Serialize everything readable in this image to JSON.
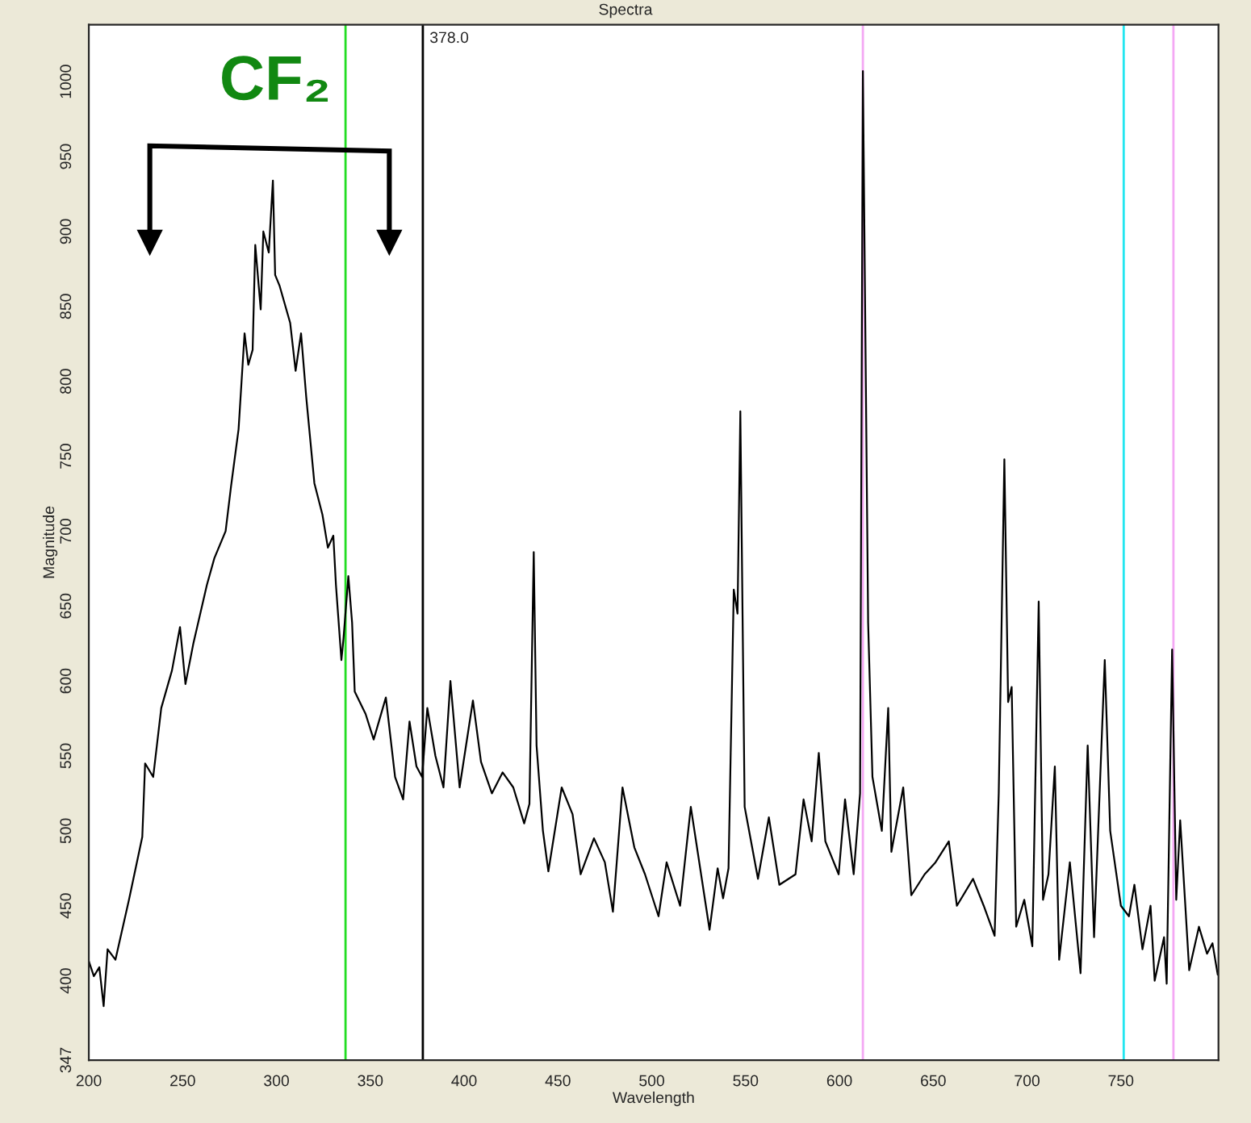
{
  "chart_data": {
    "type": "line",
    "title": "Spectra",
    "xlabel": "Wavelength",
    "ylabel": "Magnitude",
    "xlim": [
      200,
      802
    ],
    "xticks": [
      200,
      250,
      300,
      350,
      400,
      450,
      500,
      550,
      600,
      650,
      700,
      750
    ],
    "ylim": [
      347,
      1038
    ],
    "yticks": [
      347,
      400,
      450,
      500,
      550,
      600,
      650,
      700,
      750,
      800,
      850,
      900,
      950,
      1000
    ],
    "grid": false,
    "legend": false,
    "marker": "none",
    "line_style": "solid",
    "annotations": [
      "CF₂"
    ],
    "ref_lines": [
      {
        "axis": "x",
        "value": 336.8,
        "label": null,
        "color": "#22dd22"
      },
      {
        "axis": "x",
        "value": 378,
        "label": "378.0",
        "color": "#000000"
      },
      {
        "axis": "x",
        "value": 612.5,
        "label": null,
        "color": "#f4a8f4"
      },
      {
        "axis": "x",
        "value": 751.5,
        "label": null,
        "color": "#22e6f0"
      },
      {
        "axis": "x",
        "value": 778,
        "label": null,
        "color": "#f4a8f4"
      }
    ],
    "series": [
      {
        "color": "#000000",
        "x": [
          200,
          202.7,
          205.6,
          207.9,
          210,
          214.2,
          221.4,
          228.5,
          230,
          234.3,
          238.6,
          244.3,
          248.6,
          251.5,
          255.7,
          262.9,
          266.9,
          272.9,
          275.8,
          279.8,
          283,
          285,
          287.3,
          288.7,
          291.6,
          293,
          295.9,
          298.1,
          299.3,
          301.6,
          307.3,
          310.2,
          313.1,
          315.9,
          320.2,
          324.5,
          327.4,
          330.3,
          331.7,
          334.6,
          335.7,
          338.3,
          340.3,
          341.7,
          347.5,
          351.8,
          358.3,
          363.2,
          367.5,
          370.9,
          374.6,
          377.6,
          380.4,
          384.7,
          389,
          392.7,
          397.6,
          404.7,
          409,
          414.8,
          420.5,
          426.2,
          432,
          434.8,
          437.1,
          438.6,
          442,
          444.9,
          452,
          457.8,
          462.1,
          469.2,
          475,
          479.3,
          484.4,
          490.7,
          496.4,
          503.6,
          507.9,
          515.1,
          520.8,
          530.8,
          535.1,
          538,
          540.9,
          543.7,
          545.7,
          547.2,
          549.5,
          556.6,
          562.4,
          568,
          576.6,
          580.9,
          585.2,
          589,
          592.5,
          599.6,
          603,
          607.6,
          611,
          612.5,
          615.3,
          617.6,
          622.6,
          626,
          627.7,
          634,
          638.3,
          645.4,
          651.2,
          658.3,
          662.6,
          671.2,
          676.9,
          682.7,
          684.9,
          687.9,
          689.9,
          691.8,
          694.2,
          698.5,
          702.8,
          706.2,
          708.5,
          711.4,
          714.8,
          717.1,
          722.8,
          728.5,
          732.3,
          735.7,
          741.4,
          744.3,
          750,
          754.3,
          757.2,
          761.5,
          765.8,
          768,
          773,
          774.4,
          777.3,
          779.5,
          781.6,
          786.4,
          791.6,
          795.9,
          798.8,
          801.6
        ],
        "values": [
          413,
          403,
          409,
          383,
          421,
          414,
          454,
          496,
          545,
          536,
          582,
          607,
          636,
          598,
          625,
          664,
          682,
          700,
          730,
          768,
          832,
          811,
          821,
          891,
          848,
          900,
          886,
          934,
          871,
          864,
          839,
          807,
          832,
          789,
          732,
          711,
          689,
          697,
          664,
          614,
          628,
          670,
          639,
          593,
          578,
          561,
          589,
          536,
          521,
          573,
          543,
          536,
          582,
          550,
          529,
          600,
          529,
          587,
          546,
          525,
          539,
          529,
          505,
          518,
          686,
          557,
          500,
          473,
          529,
          511,
          471,
          495,
          479,
          446,
          529,
          489,
          471,
          443,
          479,
          450,
          516,
          434,
          475,
          455,
          475,
          661,
          645,
          780,
          516,
          468,
          509,
          464,
          471,
          521,
          493,
          552,
          493,
          471,
          521,
          471,
          525,
          1007,
          639,
          536,
          500,
          582,
          486,
          529,
          457,
          471,
          479,
          493,
          450,
          468,
          450,
          430,
          525,
          748,
          586,
          596,
          436,
          454,
          423,
          653,
          454,
          471,
          543,
          414,
          479,
          405,
          557,
          429,
          614,
          500,
          450,
          443,
          464,
          421,
          450,
          400,
          429,
          398,
          621,
          454,
          507,
          407,
          436,
          418,
          425,
          404
        ]
      }
    ]
  }
}
